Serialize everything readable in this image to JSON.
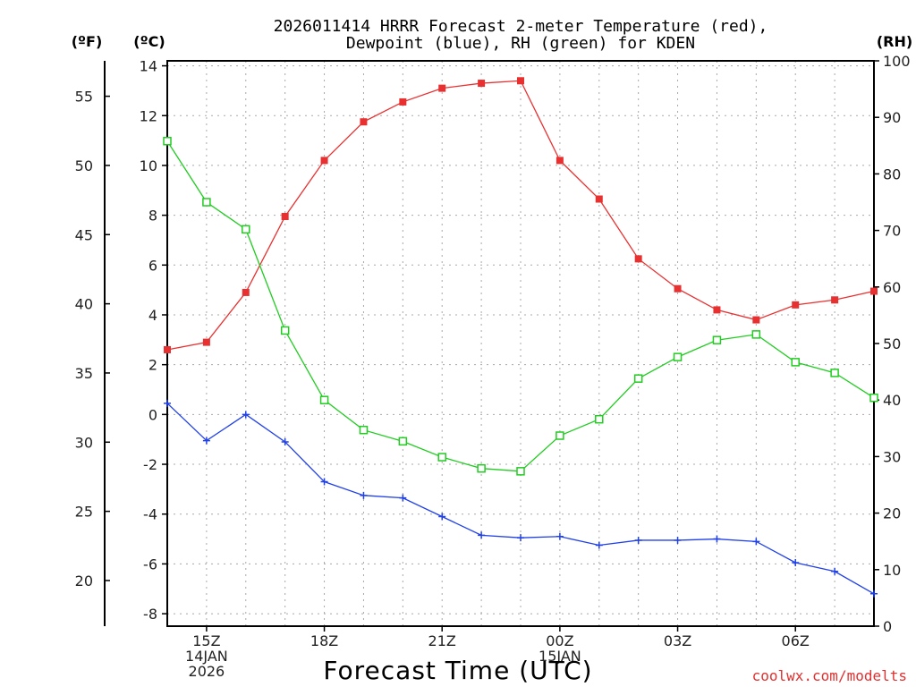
{
  "chart_data": {
    "type": "line",
    "title_line1": "2026011414 HRRR Forecast 2-meter Temperature (red),",
    "title_line2": "Dewpoint (blue), RH (green) for KDEN",
    "xlabel": "Forecast Time (UTC)",
    "credit": "coolwx.com/modelts",
    "unit_labels": {
      "fahrenheit": "(ºF)",
      "celsius": "(ºC)",
      "rh": "(RH)"
    },
    "x_hours": [
      14,
      15,
      16,
      17,
      18,
      19,
      20,
      21,
      22,
      23,
      24,
      25,
      26,
      27,
      28,
      29,
      30,
      31,
      32
    ],
    "x_range": [
      14,
      32
    ],
    "x_ticks": [
      {
        "hour": 15,
        "lines": [
          "15Z",
          "14JAN",
          "2026"
        ]
      },
      {
        "hour": 18,
        "lines": [
          "18Z"
        ]
      },
      {
        "hour": 21,
        "lines": [
          "21Z"
        ]
      },
      {
        "hour": 24,
        "lines": [
          "00Z",
          "15JAN"
        ]
      },
      {
        "hour": 27,
        "lines": [
          "03Z"
        ]
      },
      {
        "hour": 30,
        "lines": [
          "06Z"
        ]
      }
    ],
    "celsius_axis": {
      "range": [
        -8.5,
        14.2
      ],
      "ticks": [
        -8,
        -6,
        -4,
        -2,
        0,
        2,
        4,
        6,
        8,
        10,
        12,
        14
      ]
    },
    "fahrenheit_ticks": [
      20,
      25,
      30,
      35,
      40,
      45,
      50,
      55
    ],
    "rh_axis": {
      "range": [
        0,
        100
      ],
      "ticks": [
        0,
        10,
        20,
        30,
        40,
        50,
        60,
        70,
        80,
        90,
        100
      ]
    },
    "series": [
      {
        "name": "2-meter Temperature",
        "axis": "celsius",
        "color": "#e83030",
        "marker": "filled-square",
        "values": [
          2.6,
          2.9,
          4.9,
          7.95,
          10.2,
          11.75,
          12.55,
          13.1,
          13.3,
          13.4,
          10.2,
          8.65,
          6.25,
          5.05,
          4.2,
          3.8,
          4.4,
          4.6,
          4.95
        ]
      },
      {
        "name": "Dewpoint",
        "axis": "celsius",
        "color": "#2040e8",
        "marker": "plus",
        "values": [
          0.45,
          -1.05,
          0.0,
          -1.1,
          -2.7,
          -3.25,
          -3.35,
          -4.1,
          -4.85,
          -4.95,
          -4.9,
          -5.25,
          -5.05,
          -5.05,
          -5.0,
          -5.1,
          -5.95,
          -6.3,
          -7.2
        ]
      },
      {
        "name": "RH",
        "axis": "rh",
        "color": "#22cc22",
        "marker": "open-square",
        "values": [
          85.8,
          75.0,
          70.2,
          52.3,
          40.0,
          34.7,
          32.7,
          29.9,
          27.9,
          27.4,
          33.7,
          36.6,
          43.8,
          47.6,
          50.6,
          51.6,
          46.7,
          44.8,
          40.4
        ]
      }
    ]
  }
}
